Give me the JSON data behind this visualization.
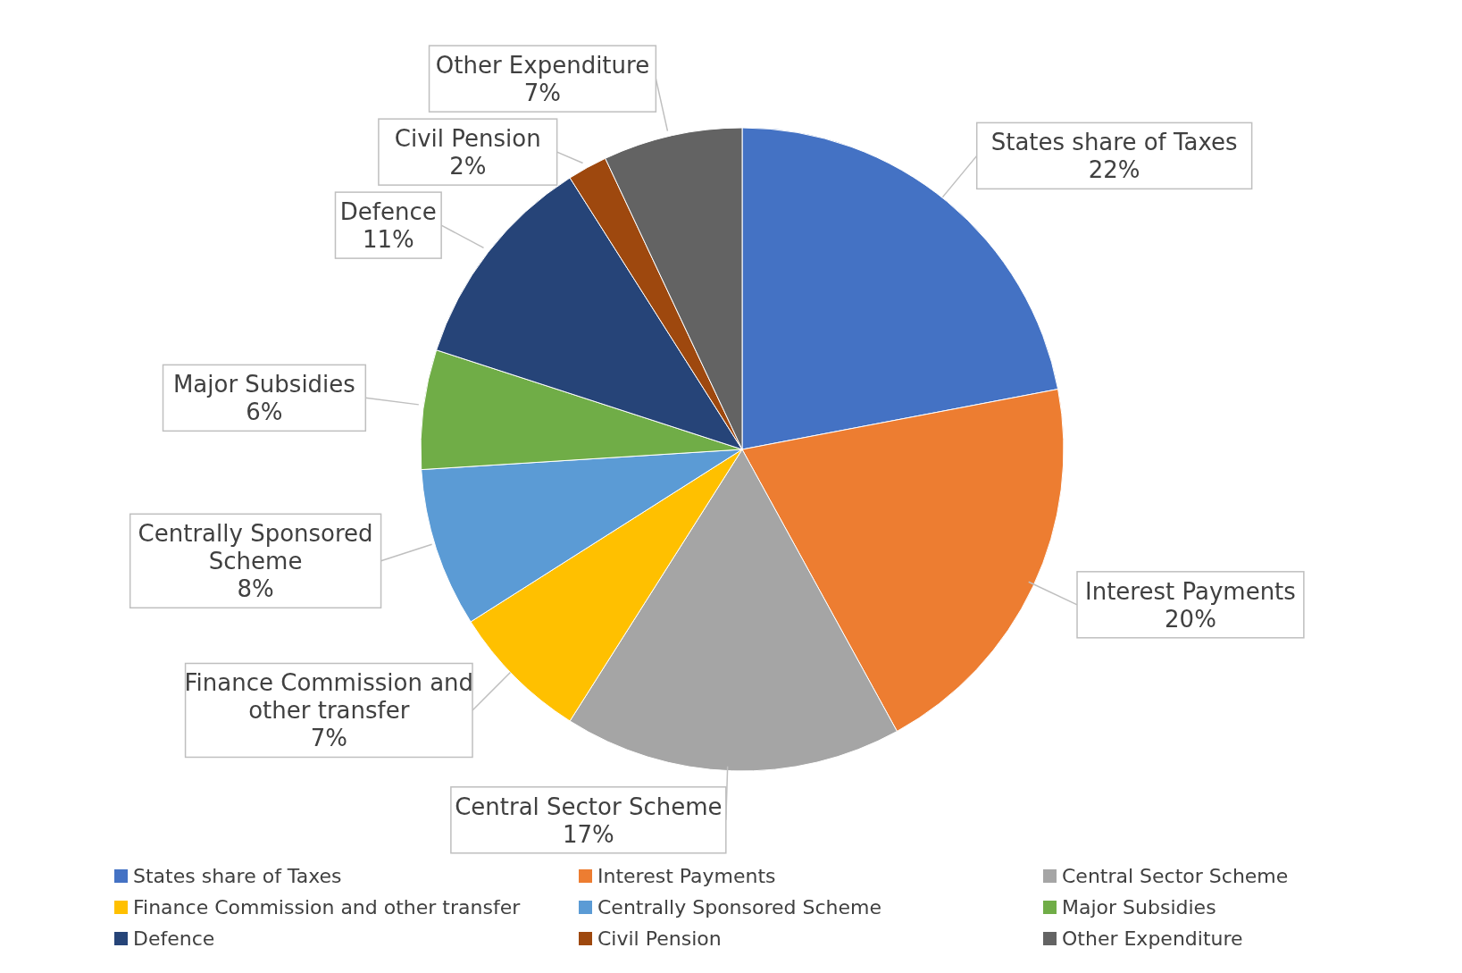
{
  "chart_data": {
    "type": "pie",
    "categories": [
      "States share of Taxes",
      "Interest Payments",
      "Central Sector Scheme",
      "Finance Commission and other transfer",
      "Centrally Sponsored Scheme",
      "Major Subsidies",
      "Defence",
      "Civil Pension",
      "Other Expenditure"
    ],
    "values": [
      22,
      20,
      17,
      7,
      8,
      6,
      11,
      2,
      7
    ],
    "value_labels": [
      "22%",
      "20%",
      "17%",
      "7%",
      "8%",
      "6%",
      "11%",
      "2%",
      "7%"
    ],
    "colors": [
      "#4472c4",
      "#ed7d31",
      "#a5a5a5",
      "#ffc000",
      "#5b9bd5",
      "#70ad47",
      "#264478",
      "#9e480e",
      "#636363"
    ],
    "legend": "bottom"
  }
}
